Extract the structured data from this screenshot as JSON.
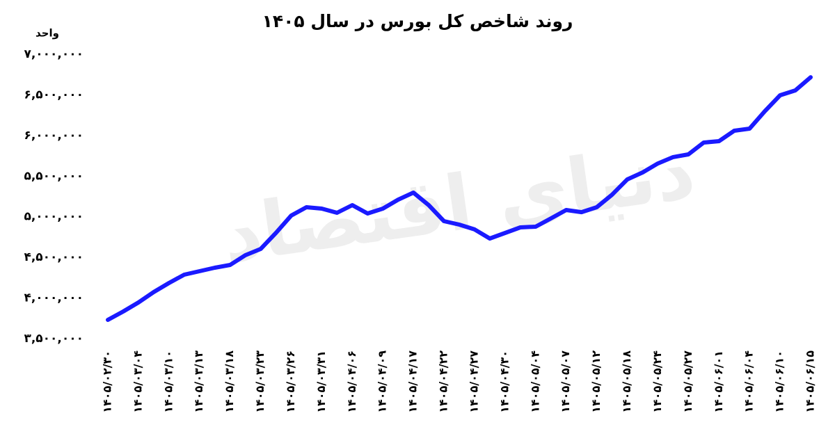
{
  "chart_data": {
    "type": "line",
    "title": "روند شاخص کل بورس در سال ۱۴۰۵",
    "y_label": "واحد",
    "watermark": "دنیای اقتصاد",
    "categories": [
      "۱۴۰۵/۰۲/۳۰",
      null,
      "۱۴۰۵/۰۳/۰۴",
      null,
      "۱۴۰۵/۰۳/۱۰",
      null,
      "۱۴۰۵/۰۳/۱۳",
      null,
      "۱۴۰۵/۰۳/۱۸",
      null,
      "۱۴۰۵/۰۳/۲۳",
      null,
      "۱۴۰۵/۰۳/۲۶",
      null,
      "۱۴۰۵/۰۳/۳۱",
      null,
      "۱۴۰۵/۰۴/۰۶",
      null,
      "۱۴۰۵/۰۴/۰۹",
      null,
      "۱۴۰۵/۰۴/۱۷",
      null,
      "۱۴۰۵/۰۴/۲۲",
      null,
      "۱۴۰۵/۰۴/۲۷",
      null,
      "۱۴۰۵/۰۴/۳۰",
      null,
      "۱۴۰۵/۰۵/۰۴",
      null,
      "۱۴۰۵/۰۵/۰۷",
      null,
      "۱۴۰۵/۰۵/۱۲",
      null,
      "۱۴۰۵/۰۵/۱۸",
      null,
      "۱۴۰۵/۰۵/۲۴",
      null,
      "۱۴۰۵/۰۵/۲۷",
      null,
      "۱۴۰۵/۰۶/۰۱",
      null,
      "۱۴۰۵/۰۶/۰۴",
      null,
      "۱۴۰۵/۰۶/۱۰",
      null,
      "۱۴۰۵/۰۶/۱۵"
    ],
    "series": [
      {
        "name": "شاخص کل",
        "color": "#1a1aff",
        "values": [
          3731000,
          3834000,
          3945000,
          4073000,
          4185000,
          4287000,
          4330000,
          4373000,
          4407000,
          4527000,
          4604000,
          4801000,
          5015000,
          5117000,
          5100000,
          5049000,
          5143000,
          5040000,
          5100000,
          5211000,
          5297000,
          5143000,
          4946000,
          4903000,
          4844000,
          4732000,
          4801000,
          4869000,
          4878000,
          4980000,
          5083000,
          5057000,
          5117000,
          5271000,
          5460000,
          5545000,
          5656000,
          5734000,
          5768000,
          5913000,
          5930000,
          6059000,
          6084000,
          6298000,
          6495000,
          6555000,
          6717000
        ]
      }
    ],
    "ylim": [
      3500000,
      7000000
    ],
    "yticks": [
      {
        "value": 3500000,
        "label": "۳,۵۰۰,۰۰۰"
      },
      {
        "value": 4000000,
        "label": "۴,۰۰۰,۰۰۰"
      },
      {
        "value": 4500000,
        "label": "۴,۵۰۰,۰۰۰"
      },
      {
        "value": 5000000,
        "label": "۵,۰۰۰,۰۰۰"
      },
      {
        "value": 5500000,
        "label": "۵,۵۰۰,۰۰۰"
      },
      {
        "value": 6000000,
        "label": "۶,۰۰۰,۰۰۰"
      },
      {
        "value": 6500000,
        "label": "۶,۵۰۰,۰۰۰"
      },
      {
        "value": 7000000,
        "label": "۷,۰۰۰,۰۰۰"
      }
    ],
    "grid": false
  }
}
